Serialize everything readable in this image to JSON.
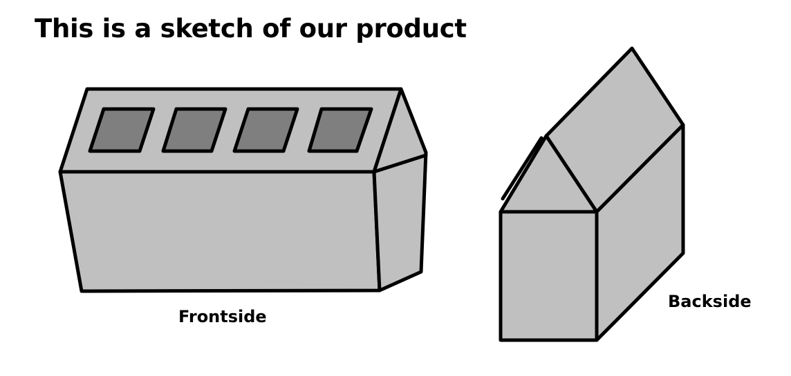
{
  "title": "This is a sketch of our product",
  "labels": {
    "frontside": "Frontside",
    "backside": "Backside"
  },
  "colors": {
    "body_fill": "#c0c0c0",
    "panel_fill": "#7f7f7f",
    "outline": "#000000",
    "background": "#ffffff"
  }
}
